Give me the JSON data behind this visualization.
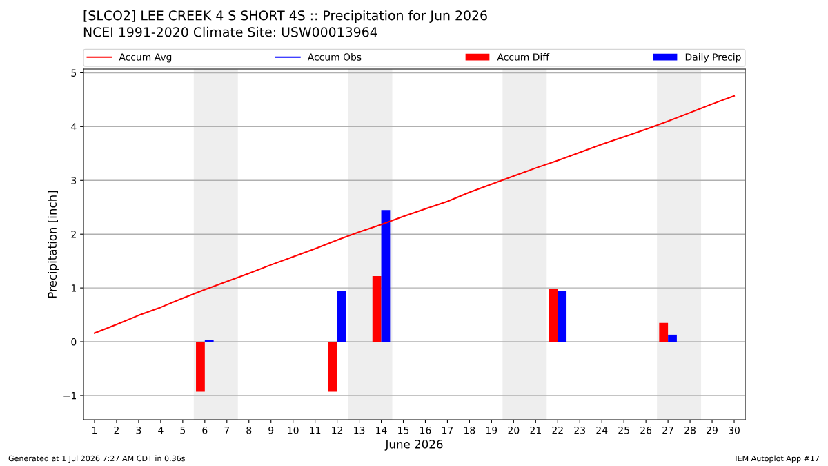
{
  "chart_data": {
    "type": "bar",
    "title": "[SLCO2] LEE CREEK 4 S SHORT 4S :: Precipitation for Jun 2026",
    "subtitle": "NCEI 1991-2020 Climate Site: USW00013964",
    "xlabel": "June 2026",
    "ylabel": "Precipitation [inch]",
    "x": [
      1,
      2,
      3,
      4,
      5,
      6,
      7,
      8,
      9,
      10,
      11,
      12,
      13,
      14,
      15,
      16,
      17,
      18,
      19,
      20,
      21,
      22,
      23,
      24,
      25,
      26,
      27,
      28,
      29,
      30
    ],
    "series": [
      {
        "name": "Accum Avg",
        "type": "line",
        "color": "#ff0000",
        "values": [
          0.16,
          0.32,
          0.49,
          0.64,
          0.81,
          0.97,
          1.12,
          1.27,
          1.43,
          1.58,
          1.73,
          1.89,
          2.04,
          2.18,
          2.33,
          2.47,
          2.61,
          2.78,
          2.93,
          3.08,
          3.23,
          3.37,
          3.52,
          3.67,
          3.81,
          3.95,
          4.1,
          4.26,
          4.42,
          4.57
        ]
      },
      {
        "name": "Accum Obs",
        "type": "line",
        "color": "#0000ff",
        "values": [
          null,
          null,
          null,
          null,
          null,
          null,
          null,
          null,
          null,
          null,
          null,
          null,
          null,
          null,
          null,
          null,
          null,
          null,
          null,
          null,
          null,
          null,
          null,
          null,
          null,
          null,
          null,
          null,
          null,
          null
        ]
      },
      {
        "name": "Accum Diff",
        "color": "#ff0000",
        "values": [
          null,
          null,
          null,
          null,
          null,
          -0.93,
          null,
          null,
          null,
          null,
          null,
          -0.93,
          null,
          1.22,
          null,
          null,
          null,
          null,
          null,
          null,
          null,
          0.98,
          null,
          null,
          null,
          null,
          0.35,
          null,
          null,
          null
        ]
      },
      {
        "name": "Daily Precip",
        "color": "#0000ff",
        "values": [
          null,
          null,
          null,
          null,
          null,
          0.03,
          null,
          null,
          null,
          null,
          null,
          0.94,
          null,
          2.45,
          null,
          null,
          null,
          null,
          null,
          null,
          null,
          0.94,
          null,
          null,
          null,
          null,
          0.13,
          null,
          null,
          null
        ]
      }
    ],
    "xlim": [
      0.5,
      30.5
    ],
    "xticks": [
      1,
      2,
      3,
      4,
      5,
      6,
      7,
      8,
      9,
      10,
      11,
      12,
      13,
      14,
      15,
      16,
      17,
      18,
      19,
      20,
      21,
      22,
      23,
      24,
      25,
      26,
      27,
      28,
      29,
      30
    ],
    "ylim": [
      -1.45,
      5.07
    ],
    "yticks": [
      {
        "value": -1,
        "label": "−1"
      },
      0,
      1,
      2,
      3,
      4,
      5
    ],
    "bands": [
      {
        "axis": "x",
        "from": 5.5,
        "to": 7.5,
        "color": "#eeeeee"
      },
      {
        "axis": "x",
        "from": 12.5,
        "to": 14.5,
        "color": "#eeeeee"
      },
      {
        "axis": "x",
        "from": 19.5,
        "to": 21.5,
        "color": "#eeeeee"
      },
      {
        "axis": "x",
        "from": 26.5,
        "to": 28.5,
        "color": "#eeeeee"
      }
    ],
    "grid": "y",
    "legend": "top",
    "annotations": [
      "Generated at 1 Jul 2026 7:27 AM CDT in 0.36s",
      "IEM Autoplot App #17"
    ]
  }
}
